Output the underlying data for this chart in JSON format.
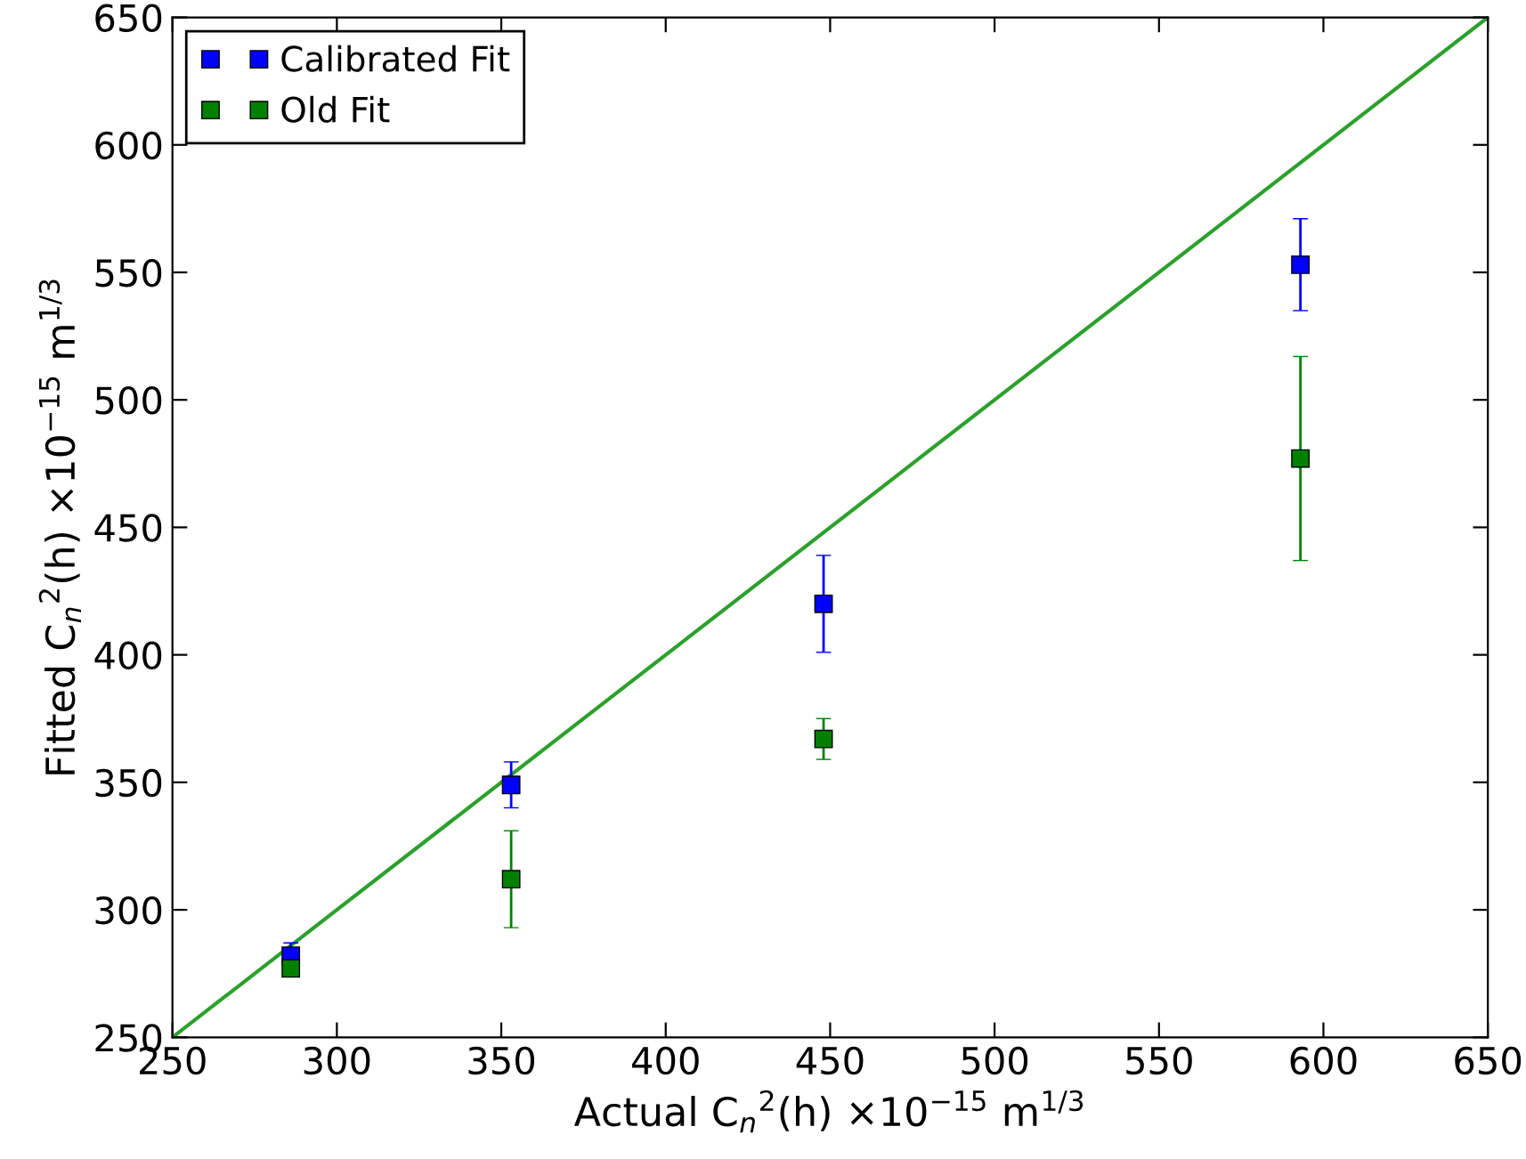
{
  "chart_data": {
    "type": "scatter",
    "xlabel": "Actual C$_{n}$$^{2}$(h) ×10$^{−15}$ m$^{1/3}$",
    "ylabel": "Fitted C$_{n}$$^{2}$(h) ×10$^{−15}$ m$^{1/3}$",
    "x": [
      286,
      353,
      448,
      593
    ],
    "series": [
      {
        "name": "Calibrated Fit",
        "color": "#0000ff",
        "values": [
          282,
          349,
          420,
          553
        ],
        "errors": [
          5,
          9,
          19,
          18
        ]
      },
      {
        "name": "Old Fit",
        "color": "#008000",
        "values": [
          277,
          312,
          367,
          477
        ],
        "errors": [
          2,
          19,
          8,
          40
        ]
      },
      {
        "type": "line",
        "marker": "none",
        "color": "#2ca02c",
        "x": [
          250,
          650
        ],
        "values": [
          250,
          650
        ]
      }
    ],
    "xlim": [
      250,
      650
    ],
    "ylim": [
      250,
      650
    ],
    "xticks": [
      250,
      300,
      350,
      400,
      450,
      500,
      550,
      600,
      650
    ],
    "yticks": [
      250,
      300,
      350,
      400,
      450,
      500,
      550,
      600,
      650
    ],
    "marker": "square",
    "legend": "top left",
    "grid": false
  }
}
